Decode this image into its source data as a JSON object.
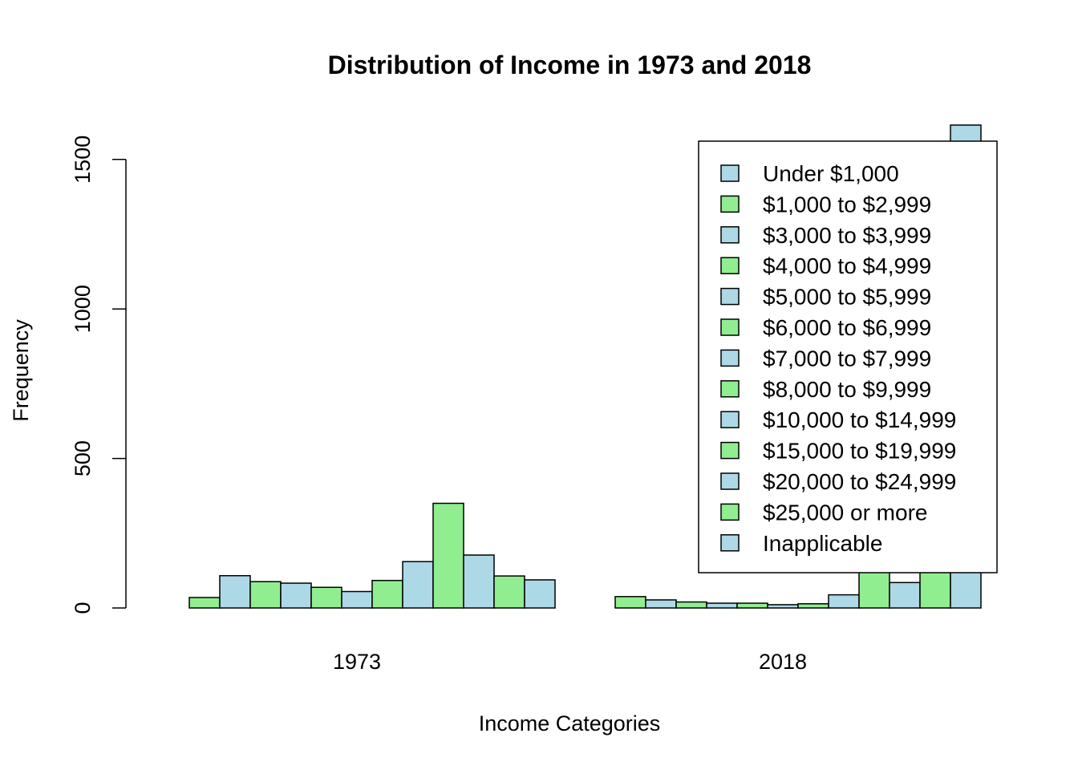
{
  "chart_data": {
    "type": "bar",
    "title": "Distribution of Income in 1973 and 2018",
    "xlabel": "Income Categories",
    "ylabel": "Frequency",
    "ylim": [
      0,
      1620
    ],
    "y_ticks": [
      0,
      500,
      1000,
      1500
    ],
    "categories": [
      "1973",
      "2018"
    ],
    "series": [
      {
        "name": "Under $1,000",
        "values": [
          0,
          0
        ]
      },
      {
        "name": "$1,000 to $2,999",
        "values": [
          35,
          38
        ]
      },
      {
        "name": "$3,000 to $3,999",
        "values": [
          108,
          27
        ]
      },
      {
        "name": "$4,000 to $4,999",
        "values": [
          88,
          20
        ]
      },
      {
        "name": "$5,000 to $5,999",
        "values": [
          83,
          16
        ]
      },
      {
        "name": "$6,000 to $6,999",
        "values": [
          69,
          16
        ]
      },
      {
        "name": "$7,000 to $7,999",
        "values": [
          55,
          11
        ]
      },
      {
        "name": "$8,000 to $9,999",
        "values": [
          92,
          14
        ]
      },
      {
        "name": "$10,000 to $14,999",
        "values": [
          155,
          44
        ]
      },
      {
        "name": "$15,000 to $19,999",
        "values": [
          350,
          130
        ]
      },
      {
        "name": "$20,000 to $24,999",
        "values": [
          177,
          85
        ]
      },
      {
        "name": "$25,000 or more",
        "values": [
          107,
          160
        ]
      },
      {
        "name": "Inapplicable",
        "values": [
          94,
          1615
        ]
      }
    ],
    "colors": [
      "#add8e6",
      "#90ee90"
    ],
    "legend_position": "top-right",
    "grid": false
  }
}
